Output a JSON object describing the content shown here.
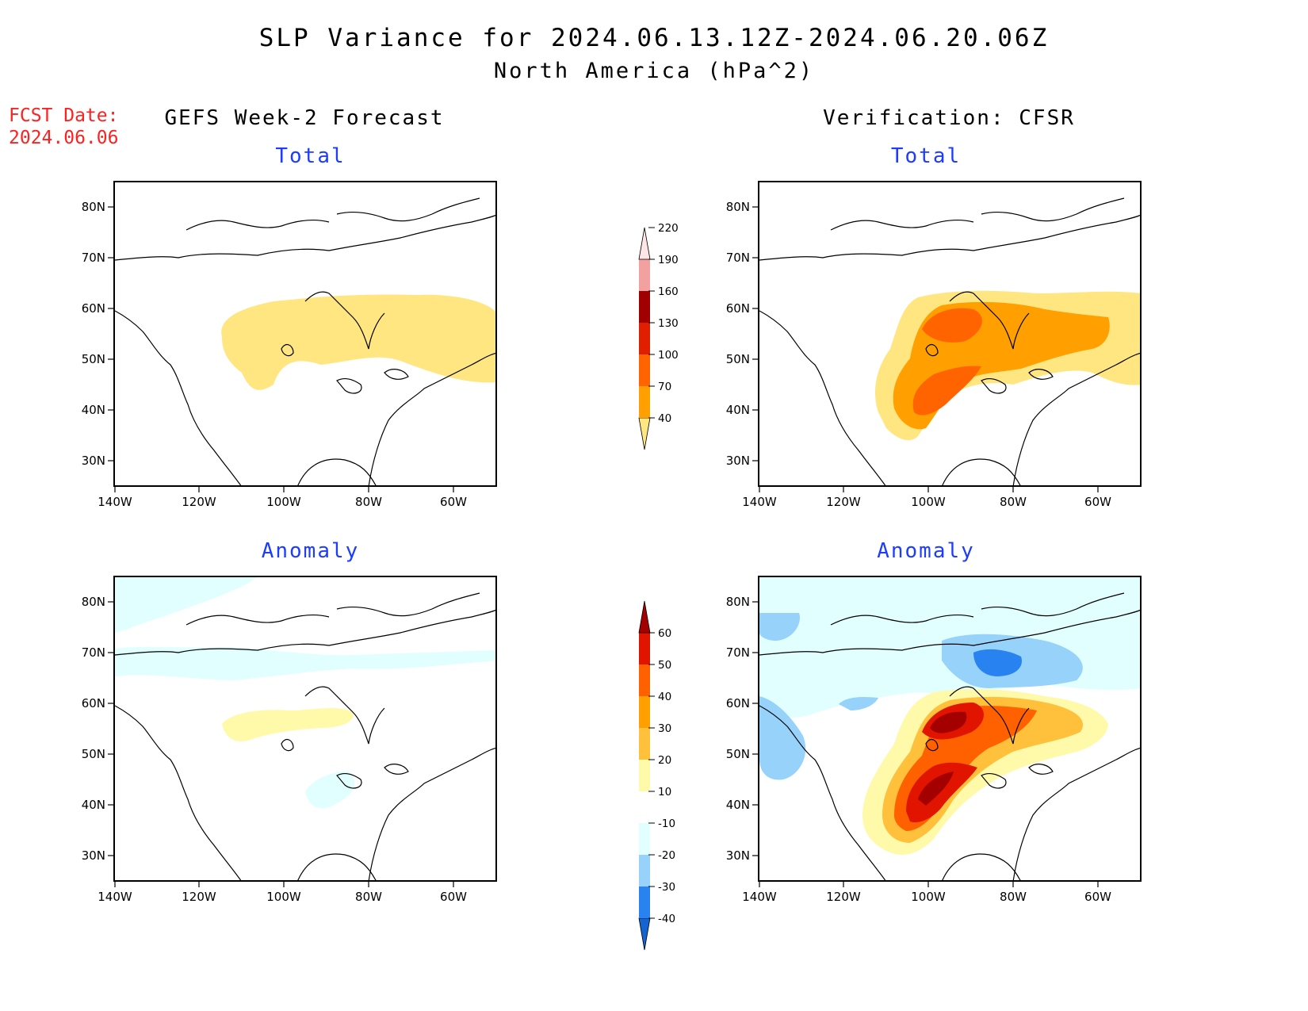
{
  "header": {
    "title": "SLP Variance for 2024.06.13.12Z-2024.06.20.06Z",
    "subtitle": "North America (hPa^2)",
    "fcst_label": "FCST Date:",
    "fcst_date": "2024.06.06",
    "left_column": "GEFS Week-2 Forecast",
    "right_column": "Verification: CFSR"
  },
  "panels": {
    "total_title": "Total",
    "anomaly_title": "Anomaly"
  },
  "axes": {
    "lat_labels": [
      "80N",
      "70N",
      "60N",
      "50N",
      "40N",
      "30N"
    ],
    "lon_labels": [
      "140W",
      "120W",
      "100W",
      "80W",
      "60W"
    ]
  },
  "colorbar_total": {
    "labels": [
      "40",
      "70",
      "100",
      "130",
      "160",
      "190",
      "220"
    ],
    "colors": [
      "#ffe680",
      "#ffa000",
      "#ff6400",
      "#e01e00",
      "#a00000",
      "#f2a0a0",
      "#ffe6e6"
    ]
  },
  "colorbar_anomaly": {
    "labels": [
      "-40",
      "-30",
      "-20",
      "-10",
      "10",
      "20",
      "30",
      "40",
      "50",
      "60"
    ],
    "colors": [
      "#1464d2",
      "#2882f0",
      "#96d2fa",
      "#e1ffff",
      "#ffffff",
      "#fffaaa",
      "#ffc03c",
      "#ffa000",
      "#ff6000",
      "#e11400",
      "#a50000"
    ]
  },
  "colors": {
    "title_red": "#ff2020",
    "panel_title_blue": "#1c3cff"
  }
}
